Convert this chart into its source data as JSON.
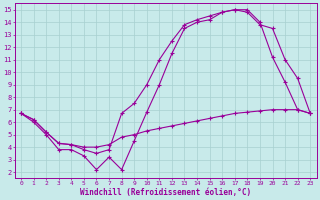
{
  "xlabel": "Windchill (Refroidissement éolien,°C)",
  "bg_color": "#c8eaea",
  "grid_color": "#a8d0d0",
  "line_color": "#990099",
  "xlim": [
    -0.5,
    23.5
  ],
  "ylim": [
    1.5,
    15.5
  ],
  "xticks": [
    0,
    1,
    2,
    3,
    4,
    5,
    6,
    7,
    8,
    9,
    10,
    11,
    12,
    13,
    14,
    15,
    16,
    17,
    18,
    19,
    20,
    21,
    22,
    23
  ],
  "yticks": [
    2,
    3,
    4,
    5,
    6,
    7,
    8,
    9,
    10,
    11,
    12,
    13,
    14,
    15
  ],
  "line1_x": [
    0,
    1,
    2,
    3,
    4,
    5,
    6,
    7,
    8,
    9,
    10,
    11,
    12,
    13,
    14,
    15,
    16,
    17,
    18,
    19,
    20,
    21,
    22,
    23
  ],
  "line1_y": [
    6.7,
    6.0,
    5.0,
    3.8,
    3.8,
    3.3,
    2.2,
    3.2,
    2.2,
    4.5,
    6.8,
    9.0,
    11.5,
    13.5,
    14.0,
    14.2,
    14.8,
    15.0,
    15.0,
    14.0,
    11.2,
    9.2,
    7.0,
    6.7
  ],
  "line2_x": [
    0,
    1,
    2,
    3,
    4,
    5,
    6,
    7,
    8,
    9,
    10,
    11,
    12,
    13,
    14,
    15,
    16,
    17,
    18,
    19,
    20,
    21,
    22,
    23
  ],
  "line2_y": [
    6.7,
    6.2,
    5.2,
    4.3,
    4.2,
    3.8,
    3.5,
    3.8,
    6.7,
    7.5,
    9.0,
    11.0,
    12.5,
    13.8,
    14.2,
    14.5,
    14.8,
    15.0,
    14.8,
    13.8,
    13.5,
    11.0,
    9.5,
    6.7
  ],
  "line3_x": [
    0,
    1,
    2,
    3,
    4,
    5,
    6,
    7,
    8,
    9,
    10,
    11,
    12,
    13,
    14,
    15,
    16,
    17,
    18,
    19,
    20,
    21,
    22,
    23
  ],
  "line3_y": [
    6.7,
    6.2,
    5.2,
    4.3,
    4.2,
    4.0,
    4.0,
    4.2,
    4.8,
    5.0,
    5.3,
    5.5,
    5.7,
    5.9,
    6.1,
    6.3,
    6.5,
    6.7,
    6.8,
    6.9,
    7.0,
    7.0,
    7.0,
    6.7
  ]
}
